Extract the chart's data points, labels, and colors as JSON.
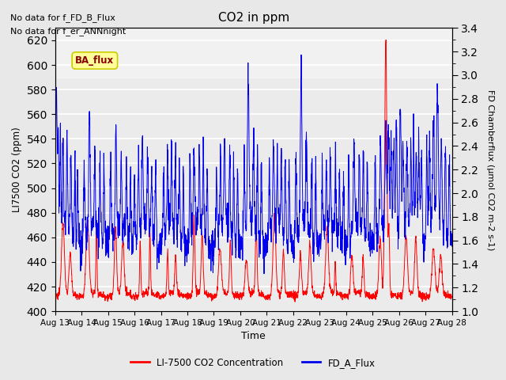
{
  "title": "CO2 in ppm",
  "xlabel": "Time",
  "ylabel_left": "LI7500 CO2 (ppm)",
  "ylabel_right": "FD Chamberflux (μmol CO2 m-2 s-1)",
  "ylim_left": [
    400,
    630
  ],
  "ylim_right": [
    1.0,
    3.4
  ],
  "yticks_left": [
    400,
    420,
    440,
    460,
    480,
    500,
    520,
    540,
    560,
    580,
    600,
    620
  ],
  "yticks_right": [
    1.0,
    1.2,
    1.4,
    1.6,
    1.8,
    2.0,
    2.2,
    2.4,
    2.6,
    2.8,
    3.0,
    3.2,
    3.4
  ],
  "xtick_labels": [
    "Aug 13",
    "Aug 14",
    "Aug 15",
    "Aug 16",
    "Aug 17",
    "Aug 18",
    "Aug 19",
    "Aug 20",
    "Aug 21",
    "Aug 22",
    "Aug 23",
    "Aug 24",
    "Aug 25",
    "Aug 26",
    "Aug 27",
    "Aug 28"
  ],
  "fig_bg_color": "#e8e8e8",
  "plot_bg_color": "#ebebeb",
  "grid_color": "#ffffff",
  "text_annotations": [
    "No data for f_FD_B_Flux",
    "No data for f_er_ANNnight"
  ],
  "legend_label_red": "LI-7500 CO2 Concentration",
  "legend_label_blue": "FD_A_Flux",
  "inset_label": "BA_flux",
  "inset_bg": "#ffff99",
  "inset_edge_color": "#cccc00",
  "inset_text_color": "#880000",
  "red_color": "#ff0000",
  "blue_color": "#0000ee",
  "n_days": 15,
  "pts_per_day": 144
}
